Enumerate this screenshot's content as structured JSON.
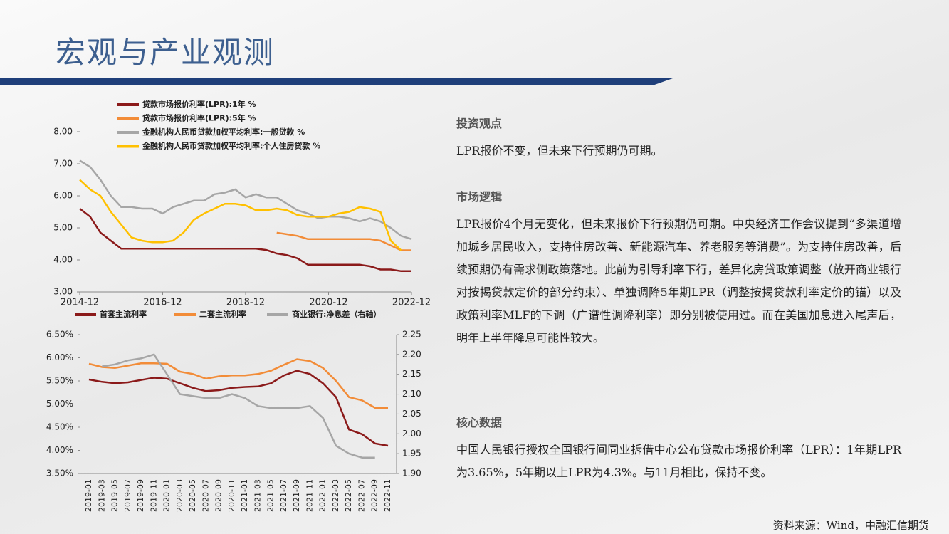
{
  "header": {
    "title": "宏观与产业观测"
  },
  "chart_data": [
    {
      "type": "line",
      "x": [
        "2014-12",
        "2015-03",
        "2015-06",
        "2015-09",
        "2015-12",
        "2016-03",
        "2016-06",
        "2016-09",
        "2016-12",
        "2017-03",
        "2017-06",
        "2017-09",
        "2017-12",
        "2018-03",
        "2018-06",
        "2018-09",
        "2018-12",
        "2019-03",
        "2019-06",
        "2019-09",
        "2019-12",
        "2020-03",
        "2020-06",
        "2020-09",
        "2020-12",
        "2021-03",
        "2021-06",
        "2021-09",
        "2021-12",
        "2022-03",
        "2022-06",
        "2022-09",
        "2022-12"
      ],
      "xticks": [
        "2014-12",
        "2016-12",
        "2018-12",
        "2020-12",
        "2022-12"
      ],
      "ylim": [
        3,
        8
      ],
      "yticks": [
        {
          "value": 3,
          "label": "3.00"
        },
        {
          "value": 4,
          "label": "4.00"
        },
        {
          "value": 5,
          "label": "5.00"
        },
        {
          "value": 6,
          "label": "6.00"
        },
        {
          "value": 7,
          "label": "7.00"
        },
        {
          "value": 8,
          "label": "8.00"
        }
      ],
      "series": [
        {
          "name": "贷款市场报价利率(LPR):1年 %",
          "color": "#8b1a1a",
          "values": [
            5.6,
            5.35,
            4.85,
            4.6,
            4.35,
            4.35,
            4.35,
            4.35,
            4.35,
            4.35,
            4.35,
            4.35,
            4.35,
            4.35,
            4.35,
            4.35,
            4.35,
            4.35,
            4.31,
            4.2,
            4.15,
            4.05,
            3.85,
            3.85,
            3.85,
            3.85,
            3.85,
            3.85,
            3.8,
            3.7,
            3.7,
            3.65,
            3.65
          ]
        },
        {
          "name": "贷款市场报价利率(LPR):5年 %",
          "color": "#f28c38",
          "values": [
            null,
            null,
            null,
            null,
            null,
            null,
            null,
            null,
            null,
            null,
            null,
            null,
            null,
            null,
            null,
            null,
            null,
            null,
            null,
            4.85,
            4.8,
            4.75,
            4.65,
            4.65,
            4.65,
            4.65,
            4.65,
            4.65,
            4.65,
            4.6,
            4.45,
            4.3,
            4.3
          ]
        },
        {
          "name": "金融机构人民币贷款加权平均利率:一般贷款 %",
          "color": "#a6a6a6",
          "values": [
            7.1,
            6.9,
            6.5,
            6.0,
            5.65,
            5.65,
            5.6,
            5.6,
            5.45,
            5.65,
            5.75,
            5.85,
            5.85,
            6.05,
            6.1,
            6.2,
            5.95,
            6.05,
            5.95,
            5.95,
            5.75,
            5.55,
            5.45,
            5.3,
            5.35,
            5.35,
            5.3,
            5.2,
            5.3,
            5.2,
            5.0,
            4.75,
            4.65
          ]
        },
        {
          "name": "金融机构人民币贷款加权平均利率:个人住房贷款 %",
          "color": "#ffc000",
          "values": [
            6.5,
            6.2,
            6.0,
            5.5,
            5.1,
            4.7,
            4.6,
            4.55,
            4.55,
            4.6,
            4.85,
            5.25,
            5.45,
            5.6,
            5.75,
            5.75,
            5.7,
            5.55,
            5.55,
            5.6,
            5.55,
            5.4,
            5.35,
            5.35,
            5.35,
            5.45,
            5.5,
            5.65,
            5.6,
            5.5,
            4.6,
            4.3,
            null
          ]
        }
      ]
    },
    {
      "type": "line",
      "categories": [
        "2019-01",
        "2019-03",
        "2019-05",
        "2019-07",
        "2019-09",
        "2019-11",
        "2020-01",
        "2020-03",
        "2020-05",
        "2020-07",
        "2020-09",
        "2020-11",
        "2021-01",
        "2021-03",
        "2021-05",
        "2021-07",
        "2021-09",
        "2021-11",
        "2022-01",
        "2022-03",
        "2022-05",
        "2022-07",
        "2022-09",
        "2022-11"
      ],
      "ylim": [
        3.5,
        6.5
      ],
      "yticks": [
        {
          "value": 3.5,
          "label": "3.50%"
        },
        {
          "value": 4,
          "label": "4.00%"
        },
        {
          "value": 4.5,
          "label": "4.50%"
        },
        {
          "value": 5,
          "label": "5.00%"
        },
        {
          "value": 5.5,
          "label": "5.50%"
        },
        {
          "value": 6,
          "label": "6.00%"
        },
        {
          "value": 6.5,
          "label": "6.50%"
        }
      ],
      "y2lim": [
        1.9,
        2.25
      ],
      "y2ticks": [
        {
          "value": 1.9,
          "label": "1.90"
        },
        {
          "value": 1.95,
          "label": "1.95"
        },
        {
          "value": 2,
          "label": "2.00"
        },
        {
          "value": 2.05,
          "label": "2.05"
        },
        {
          "value": 2.1,
          "label": "2.10"
        },
        {
          "value": 2.15,
          "label": "2.15"
        },
        {
          "value": 2.2,
          "label": "2.20"
        },
        {
          "value": 2.25,
          "label": "2.25"
        }
      ],
      "series": [
        {
          "name": "首套主流利率",
          "color": "#8b1a1a",
          "values": [
            5.53,
            5.48,
            5.45,
            5.47,
            5.52,
            5.57,
            5.55,
            5.45,
            5.35,
            5.28,
            5.3,
            5.35,
            5.37,
            5.38,
            5.45,
            5.62,
            5.72,
            5.65,
            5.45,
            5.15,
            4.45,
            4.35,
            4.15,
            4.1
          ]
        },
        {
          "name": "二套主流利率",
          "color": "#f28c38",
          "values": [
            5.87,
            5.8,
            5.78,
            5.83,
            5.88,
            5.88,
            5.87,
            5.7,
            5.65,
            5.55,
            5.6,
            5.62,
            5.62,
            5.65,
            5.72,
            5.85,
            5.97,
            5.93,
            5.78,
            5.5,
            5.15,
            5.08,
            4.92,
            4.92
          ]
        },
        {
          "name": "商业银行:净息差（右轴）",
          "color": "#a6a6a6",
          "axis": "y2",
          "values": [
            null,
            2.17,
            2.175,
            2.185,
            2.19,
            2.2,
            2.15,
            2.1,
            2.095,
            2.09,
            2.09,
            2.1,
            2.09,
            2.07,
            2.065,
            2.065,
            2.065,
            2.07,
            2.04,
            1.97,
            1.95,
            1.94,
            1.94,
            null
          ]
        }
      ]
    }
  ],
  "sections": [
    {
      "heading": "投资观点",
      "text": "LPR报价不变，但未来下行预期仍可期。"
    },
    {
      "heading": "市场逻辑",
      "text": "LPR报价4个月无变化，但未来报价下行预期仍可期。中央经济工作会议提到“多渠道增加城乡居民收入，支持住房改善、新能源汽车、养老服务等消费”。为支持住房改善，后续预期仍有需求侧政策落地。此前为引导利率下行，差异化房贷政策调整（放开商业银行对按揭贷款定价的部分约束）、单独调降5年期LPR（调整按揭贷款利率定价的锚）以及政策利率MLF的下调（广谱性调降利率）即分别被使用过。而在美国加息进入尾声后，明年上半年降息可能性较大。"
    },
    {
      "heading": "核心数据",
      "text": "中国人民银行授权全国银行间同业拆借中心公布贷款市场报价利率（LPR）：1年期LPR为3.65%，5年期以上LPR为4.3%。与11月相比，保持不变。"
    }
  ],
  "source": "资料来源：Wind，中融汇信期货"
}
